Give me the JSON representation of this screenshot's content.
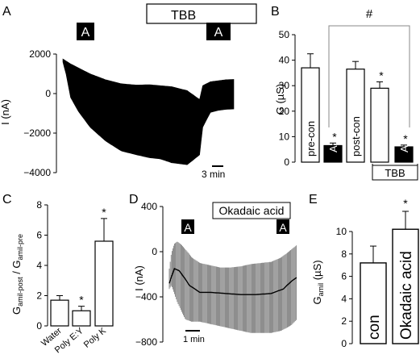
{
  "chart_data": [
    {
      "panel": "A",
      "type": "line",
      "ylabel": "I (nA)",
      "ylim": [
        -4000,
        2000
      ],
      "yticks": [
        2000,
        0,
        -2000,
        -4000
      ],
      "scalebar_label": "3 min",
      "bar_labels": [
        "TBB"
      ],
      "marker_labels": [
        "A",
        "A"
      ],
      "envelope": {
        "t": [
          0,
          4,
          10,
          20,
          35,
          55,
          75,
          95,
          112,
          125,
          140,
          160,
          176,
          180,
          190,
          200,
          210,
          220
        ],
        "upper": [
          1750,
          1650,
          1500,
          1300,
          1000,
          700,
          500,
          430,
          450,
          400,
          350,
          150,
          -300,
          400,
          600,
          650,
          700,
          720
        ],
        "lower": [
          1600,
          1000,
          -200,
          -900,
          -1700,
          -2400,
          -2900,
          -3100,
          -3250,
          -3300,
          -3500,
          -3600,
          -3100,
          -1700,
          -950,
          -850,
          -800,
          -780
        ]
      }
    },
    {
      "panel": "B",
      "type": "bar",
      "ylabel": "G (µS)",
      "ylim": [
        0,
        50
      ],
      "yticks": [
        0,
        10,
        20,
        30,
        40,
        50
      ],
      "categories": [
        "pre-con",
        "A",
        "post-con",
        "",
        "A"
      ],
      "values": [
        37,
        6.5,
        36.5,
        29,
        6
      ],
      "errors": [
        5.5,
        1,
        3,
        2.5,
        0.7
      ],
      "fill": [
        "white",
        "black",
        "white",
        "white",
        "black"
      ],
      "significance": [
        "",
        "*",
        "",
        "*",
        "*"
      ],
      "comparison_label": "#",
      "group_label": "TBB"
    },
    {
      "panel": "C",
      "type": "bar",
      "ylabel_main": "G",
      "ylabel_sub1": "amil-post",
      "ylabel_slash": " / G",
      "ylabel_sub2": "amil-pre",
      "ylim": [
        0,
        8
      ],
      "yticks": [
        0,
        2,
        4,
        6,
        8
      ],
      "categories": [
        "Water",
        "Poly E:Y",
        "Poly K"
      ],
      "values": [
        1.7,
        1.0,
        5.6
      ],
      "errors": [
        0.3,
        0.3,
        1.5
      ],
      "significance": [
        "",
        "*",
        "*"
      ]
    },
    {
      "panel": "D",
      "type": "line",
      "ylabel": "I (nA)",
      "ylim": [
        -800,
        400
      ],
      "yticks": [
        400,
        0,
        -400,
        -800
      ],
      "scalebar_label": "1 min",
      "bar_labels": [
        "Okadaic acid"
      ],
      "marker_labels": [
        "A",
        "A"
      ],
      "envelope": {
        "t": [
          0,
          2,
          5,
          8,
          12,
          16,
          22,
          30,
          40,
          50,
          60,
          70,
          80,
          90,
          100,
          110,
          120,
          125
        ],
        "upper": [
          -150,
          -10,
          70,
          90,
          60,
          20,
          -50,
          -100,
          -120,
          -140,
          -140,
          -130,
          -110,
          -100,
          -90,
          -50,
          20,
          60
        ],
        "lower": [
          -330,
          -300,
          -370,
          -450,
          -530,
          -600,
          -620,
          -620,
          -640,
          -660,
          -680,
          -700,
          -720,
          -720,
          -720,
          -700,
          -650,
          -600
        ]
      },
      "mean_trace": {
        "t": [
          0,
          5,
          10,
          20,
          30,
          40,
          55,
          70,
          85,
          100,
          112,
          120,
          125
        ],
        "values": [
          -280,
          -150,
          -170,
          -300,
          -360,
          -360,
          -370,
          -380,
          -380,
          -370,
          -330,
          -260,
          -230
        ]
      }
    },
    {
      "panel": "E",
      "type": "bar",
      "ylabel_main": "G",
      "ylabel_sub": "amil",
      "ylabel_unit": " (µS)",
      "ylim": [
        0,
        10
      ],
      "yticks": [
        0,
        2,
        4,
        6,
        8,
        10
      ],
      "categories": [
        "con",
        "Okadaic acid"
      ],
      "values": [
        7.2,
        10.2
      ],
      "errors": [
        1.5,
        1.6
      ],
      "significance": [
        "",
        "*"
      ]
    }
  ]
}
